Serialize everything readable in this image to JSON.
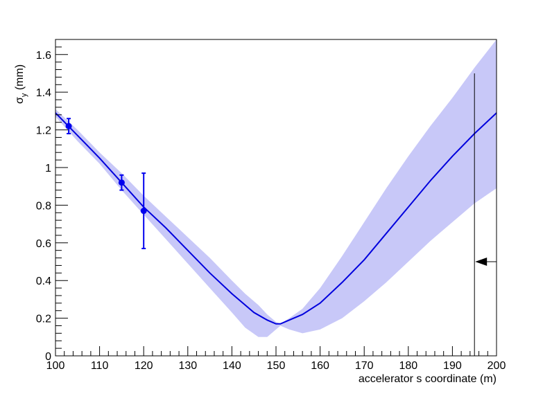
{
  "chart_data": {
    "type": "line",
    "title": "",
    "xlabel": "accelerator s coordinate (m)",
    "ylabel": {
      "base": "σ",
      "subscript": "y",
      "unit": " (mm)"
    },
    "xlim": [
      100,
      200
    ],
    "ylim": [
      0,
      1.68
    ],
    "xticks": [
      100,
      110,
      120,
      130,
      140,
      150,
      160,
      170,
      180,
      190,
      200
    ],
    "yticks": [
      0,
      0.2,
      0.4,
      0.6,
      0.8,
      1,
      1.2,
      1.4,
      1.6
    ],
    "ytick_labels": [
      "0",
      "0.2",
      "0.4",
      "0.6",
      "0.8",
      "1",
      "1.2",
      "1.4",
      "1.6"
    ],
    "grid": false,
    "colors": {
      "line": "#0000dd",
      "band": "#c8c8f8",
      "points": "#0000ee",
      "marker": "#000000"
    },
    "fit_curve": {
      "x": [
        100,
        105,
        110,
        115,
        120,
        125,
        130,
        135,
        140,
        145,
        148,
        150,
        151,
        153,
        156,
        160,
        165,
        170,
        175,
        180,
        185,
        190,
        195,
        200
      ],
      "y": [
        1.29,
        1.17,
        1.05,
        0.92,
        0.79,
        0.68,
        0.56,
        0.44,
        0.33,
        0.23,
        0.19,
        0.17,
        0.17,
        0.19,
        0.22,
        0.28,
        0.39,
        0.51,
        0.65,
        0.79,
        0.93,
        1.06,
        1.18,
        1.29
      ]
    },
    "confidence_band": {
      "x": [
        100,
        105,
        110,
        115,
        120,
        125,
        130,
        135,
        140,
        143,
        146,
        148,
        150,
        151,
        153,
        156,
        160,
        165,
        170,
        175,
        180,
        185,
        190,
        195,
        200
      ],
      "upper": [
        1.31,
        1.2,
        1.08,
        0.97,
        0.85,
        0.74,
        0.63,
        0.52,
        0.4,
        0.33,
        0.27,
        0.22,
        0.18,
        0.17,
        0.2,
        0.25,
        0.36,
        0.53,
        0.71,
        0.89,
        1.06,
        1.22,
        1.37,
        1.53,
        1.68
      ],
      "lower": [
        1.27,
        1.14,
        1.02,
        0.88,
        0.75,
        0.62,
        0.49,
        0.36,
        0.23,
        0.15,
        0.1,
        0.1,
        0.14,
        0.16,
        0.14,
        0.12,
        0.14,
        0.2,
        0.29,
        0.39,
        0.5,
        0.61,
        0.71,
        0.81,
        0.89
      ]
    },
    "data_points": [
      {
        "x": 103,
        "y": 1.22,
        "yerr": 0.04
      },
      {
        "x": 115,
        "y": 0.92,
        "yerr": 0.04
      },
      {
        "x": 120,
        "y": 0.77,
        "yerr": 0.2
      }
    ],
    "marker_line": {
      "x": 195,
      "y_top": 1.5
    },
    "arrow": {
      "y": 0.5,
      "x_start": 200,
      "x_end": 195,
      "direction": "left"
    }
  }
}
